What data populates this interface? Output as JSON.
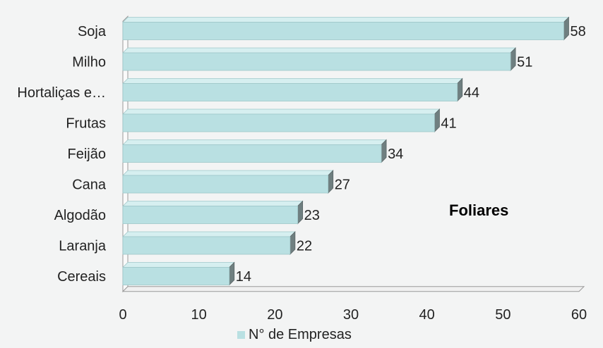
{
  "chart_data": {
    "type": "bar",
    "orientation": "horizontal",
    "categories": [
      "Soja",
      "Milho",
      "Hortaliças e…",
      "Frutas",
      "Feijão",
      "Cana",
      "Algodão",
      "Laranja",
      "Cereais"
    ],
    "series": [
      {
        "name": "N° de Empresas",
        "values": [
          58,
          51,
          44,
          41,
          34,
          27,
          23,
          22,
          14
        ],
        "color": "#b9e0e2"
      }
    ],
    "data_labels": [
      "58",
      "51",
      "44",
      "41",
      "34",
      "27",
      "23",
      "22",
      "14"
    ],
    "xlim": [
      0,
      60
    ],
    "x_ticks": [
      0,
      10,
      20,
      30,
      40,
      50,
      60
    ],
    "x_tick_labels": [
      "0",
      "10",
      "20",
      "30",
      "40",
      "50",
      "60"
    ],
    "annotation": "Foliares",
    "legend": {
      "label": "N° de Empresas",
      "position": "bottom",
      "color": "#b9e0e2"
    },
    "style": "3d-bars",
    "grid": false
  }
}
